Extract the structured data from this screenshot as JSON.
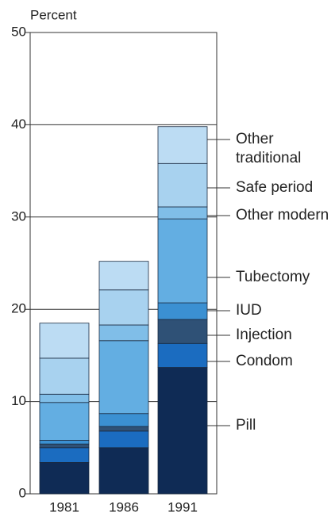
{
  "chart_data": {
    "type": "stacked_bar",
    "y_label": "Percent",
    "categories": [
      "1981",
      "1986",
      "1991"
    ],
    "series": [
      {
        "name": "Pill",
        "color": "#0f2b55",
        "values": [
          3.4,
          5.0,
          13.7
        ]
      },
      {
        "name": "Condom",
        "color": "#1b6cc0",
        "values": [
          1.6,
          1.8,
          2.6
        ]
      },
      {
        "name": "Injection",
        "color": "#2f5176",
        "values": [
          0.4,
          0.5,
          2.6
        ]
      },
      {
        "name": "IUD",
        "color": "#3b90d2",
        "values": [
          0.4,
          1.4,
          1.8
        ]
      },
      {
        "name": "Tubectomy",
        "color": "#63aee2",
        "values": [
          4.1,
          7.9,
          9.1
        ]
      },
      {
        "name": "Other modern",
        "color": "#80bee8",
        "values": [
          0.9,
          1.7,
          1.3
        ]
      },
      {
        "name": "Safe period",
        "color": "#a8d2ef",
        "values": [
          3.9,
          3.8,
          4.7
        ]
      },
      {
        "name": "Other traditional",
        "color": "#bcdcf3",
        "values": [
          3.8,
          3.1,
          4.0
        ]
      }
    ],
    "ylim": [
      0,
      50
    ],
    "yticks": [
      0,
      10,
      20,
      30,
      40,
      50
    ],
    "grid": true
  }
}
